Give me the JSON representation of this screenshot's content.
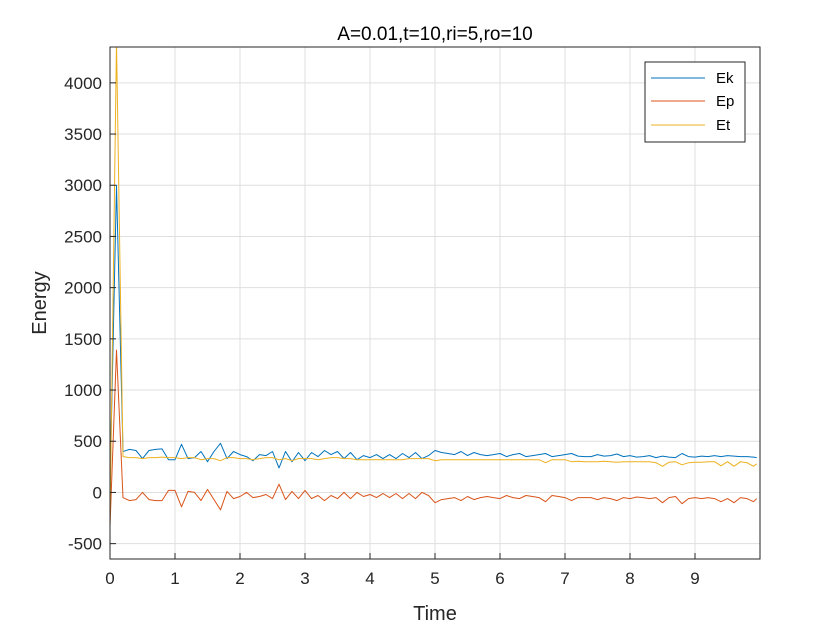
{
  "chart_data": {
    "type": "line",
    "title": "A=0.01,t=10,ri=5,ro=10",
    "xlabel": "Time",
    "ylabel": "Energy",
    "xlim": [
      0,
      10
    ],
    "ylim": [
      -650,
      4350
    ],
    "xticks": [
      0,
      1,
      2,
      3,
      4,
      5,
      6,
      7,
      8,
      9
    ],
    "yticks": [
      -500,
      0,
      500,
      1000,
      1500,
      2000,
      2500,
      3000,
      3500,
      4000
    ],
    "xtick_labels": [
      "0",
      "1",
      "2",
      "3",
      "4",
      "5",
      "6",
      "7",
      "8",
      "9"
    ],
    "ytick_labels": [
      "-500",
      "0",
      "500",
      "1000",
      "1500",
      "2000",
      "2500",
      "3000",
      "3500",
      "4000"
    ],
    "grid": true,
    "legend": "top-right",
    "series": [
      {
        "name": "Ek",
        "color": "#0072BD",
        "x": [
          0,
          0.1,
          0.2,
          0.3,
          0.4,
          0.5,
          0.6,
          0.7,
          0.8,
          0.9,
          1.0,
          1.1,
          1.2,
          1.3,
          1.4,
          1.5,
          1.6,
          1.7,
          1.8,
          1.9,
          2.0,
          2.1,
          2.2,
          2.3,
          2.4,
          2.5,
          2.6,
          2.7,
          2.8,
          2.9,
          3.0,
          3.1,
          3.2,
          3.3,
          3.4,
          3.5,
          3.6,
          3.7,
          3.8,
          3.9,
          4.0,
          4.1,
          4.2,
          4.3,
          4.4,
          4.5,
          4.6,
          4.7,
          4.8,
          4.9,
          5.0,
          5.1,
          5.2,
          5.3,
          5.4,
          5.5,
          5.6,
          5.7,
          5.8,
          5.9,
          6.0,
          6.1,
          6.2,
          6.3,
          6.4,
          6.5,
          6.6,
          6.7,
          6.8,
          6.9,
          7.0,
          7.1,
          7.2,
          7.3,
          7.4,
          7.5,
          7.6,
          7.7,
          7.8,
          7.9,
          8.0,
          8.1,
          8.2,
          8.3,
          8.4,
          8.5,
          8.6,
          8.7,
          8.8,
          8.9,
          9.0,
          9.1,
          9.2,
          9.3,
          9.4,
          9.5,
          9.6,
          9.7,
          9.8,
          9.9,
          9.95
        ],
        "values": [
          50,
          3000,
          400,
          420,
          410,
          330,
          410,
          420,
          425,
          320,
          320,
          470,
          330,
          340,
          400,
          300,
          400,
          480,
          330,
          400,
          370,
          350,
          310,
          370,
          360,
          400,
          240,
          400,
          300,
          390,
          310,
          390,
          350,
          410,
          370,
          400,
          330,
          390,
          320,
          360,
          340,
          370,
          330,
          370,
          330,
          380,
          340,
          390,
          330,
          360,
          410,
          390,
          380,
          370,
          400,
          360,
          390,
          370,
          360,
          370,
          380,
          350,
          370,
          380,
          350,
          360,
          370,
          380,
          350,
          360,
          370,
          380,
          355,
          350,
          350,
          370,
          355,
          360,
          375,
          350,
          360,
          345,
          350,
          360,
          340,
          355,
          345,
          340,
          380,
          350,
          345,
          355,
          350,
          360,
          350,
          360,
          355,
          350,
          350,
          345,
          340
        ]
      },
      {
        "name": "Ep",
        "color": "#D95319",
        "x": [
          0,
          0.1,
          0.2,
          0.3,
          0.4,
          0.5,
          0.6,
          0.7,
          0.8,
          0.9,
          1.0,
          1.1,
          1.2,
          1.3,
          1.4,
          1.5,
          1.6,
          1.7,
          1.8,
          1.9,
          2.0,
          2.1,
          2.2,
          2.3,
          2.4,
          2.5,
          2.6,
          2.7,
          2.8,
          2.9,
          3.0,
          3.1,
          3.2,
          3.3,
          3.4,
          3.5,
          3.6,
          3.7,
          3.8,
          3.9,
          4.0,
          4.1,
          4.2,
          4.3,
          4.4,
          4.5,
          4.6,
          4.7,
          4.8,
          4.9,
          5.0,
          5.1,
          5.2,
          5.3,
          5.4,
          5.5,
          5.6,
          5.7,
          5.8,
          5.9,
          6.0,
          6.1,
          6.2,
          6.3,
          6.4,
          6.5,
          6.6,
          6.7,
          6.8,
          6.9,
          7.0,
          7.1,
          7.2,
          7.3,
          7.4,
          7.5,
          7.6,
          7.7,
          7.8,
          7.9,
          8.0,
          8.1,
          8.2,
          8.3,
          8.4,
          8.5,
          8.6,
          8.7,
          8.8,
          8.9,
          9.0,
          9.1,
          9.2,
          9.3,
          9.4,
          9.5,
          9.6,
          9.7,
          9.8,
          9.9,
          9.95
        ],
        "values": [
          -330,
          1390,
          -50,
          -80,
          -70,
          0,
          -70,
          -80,
          -80,
          20,
          20,
          -140,
          10,
          0,
          -80,
          30,
          -70,
          -170,
          10,
          -60,
          -40,
          0,
          -50,
          -40,
          -20,
          -60,
          80,
          -70,
          10,
          -60,
          20,
          -60,
          -30,
          -80,
          -30,
          -60,
          0,
          -60,
          0,
          -40,
          -20,
          -50,
          -10,
          -50,
          -10,
          -60,
          -10,
          -60,
          0,
          -30,
          -100,
          -70,
          -60,
          -50,
          -80,
          -40,
          -70,
          -50,
          -40,
          -50,
          -60,
          -30,
          -50,
          -60,
          -30,
          -40,
          -50,
          -90,
          -30,
          -40,
          -50,
          -80,
          -50,
          -50,
          -50,
          -70,
          -50,
          -60,
          -80,
          -50,
          -60,
          -45,
          -50,
          -60,
          -50,
          -100,
          -50,
          -40,
          -110,
          -60,
          -50,
          -60,
          -50,
          -60,
          -90,
          -60,
          -100,
          -50,
          -60,
          -90,
          -60
        ]
      },
      {
        "name": "Et",
        "color": "#EDB120",
        "x": [
          0,
          0.1,
          0.2,
          0.3,
          0.4,
          0.5,
          0.6,
          0.7,
          0.8,
          0.9,
          1.0,
          1.1,
          1.2,
          1.3,
          1.4,
          1.5,
          1.6,
          1.7,
          1.8,
          1.9,
          2.0,
          2.1,
          2.2,
          2.3,
          2.4,
          2.5,
          2.6,
          2.7,
          2.8,
          2.9,
          3.0,
          3.1,
          3.2,
          3.3,
          3.4,
          3.5,
          3.6,
          3.7,
          3.8,
          3.9,
          4.0,
          4.1,
          4.2,
          4.3,
          4.4,
          4.5,
          4.6,
          4.7,
          4.8,
          4.9,
          5.0,
          5.1,
          5.2,
          5.3,
          5.4,
          5.5,
          5.6,
          5.7,
          5.8,
          5.9,
          6.0,
          6.1,
          6.2,
          6.3,
          6.4,
          6.5,
          6.6,
          6.7,
          6.8,
          6.9,
          7.0,
          7.1,
          7.2,
          7.3,
          7.4,
          7.5,
          7.6,
          7.7,
          7.8,
          7.9,
          8.0,
          8.1,
          8.2,
          8.3,
          8.4,
          8.5,
          8.6,
          8.7,
          8.8,
          8.9,
          9.0,
          9.1,
          9.2,
          9.3,
          9.4,
          9.5,
          9.6,
          9.7,
          9.8,
          9.9,
          9.95
        ],
        "values": [
          -280,
          4400,
          350,
          340,
          340,
          330,
          340,
          340,
          345,
          340,
          340,
          330,
          340,
          340,
          320,
          330,
          330,
          310,
          340,
          340,
          330,
          330,
          320,
          330,
          340,
          340,
          320,
          330,
          310,
          330,
          330,
          330,
          320,
          330,
          340,
          340,
          330,
          330,
          320,
          320,
          320,
          320,
          320,
          320,
          320,
          320,
          330,
          330,
          330,
          330,
          310,
          320,
          320,
          320,
          320,
          320,
          320,
          320,
          320,
          320,
          320,
          320,
          320,
          320,
          320,
          320,
          320,
          290,
          320,
          320,
          320,
          300,
          305,
          300,
          300,
          300,
          305,
          300,
          295,
          300,
          300,
          300,
          300,
          300,
          290,
          255,
          295,
          300,
          270,
          290,
          295,
          295,
          300,
          300,
          260,
          300,
          255,
          300,
          290,
          255,
          280
        ]
      }
    ]
  }
}
